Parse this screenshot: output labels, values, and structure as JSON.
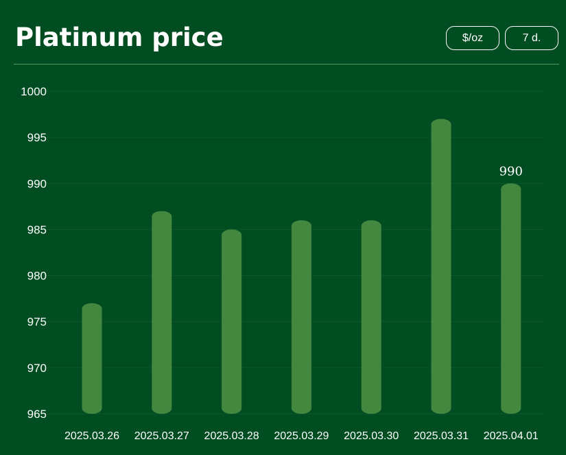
{
  "header": {
    "title": "Platinum price",
    "unit_button": "$/oz",
    "range_button": "7 d."
  },
  "colors": {
    "background": "#004d22",
    "bar": "#448840",
    "grid": "#0d5a2a",
    "text": "#ffffff"
  },
  "chart_data": {
    "type": "bar",
    "title": "Platinum price",
    "xlabel": "",
    "ylabel": "",
    "categories": [
      "2025.03.26",
      "2025.03.27",
      "2025.03.28",
      "2025.03.29",
      "2025.03.30",
      "2025.03.31",
      "2025.04.01"
    ],
    "series": [
      {
        "values": [
          977,
          987,
          985,
          986,
          986,
          997,
          990
        ]
      }
    ],
    "ylim": [
      965,
      1000
    ],
    "yticks": [
      965,
      970,
      975,
      980,
      985,
      990,
      995,
      1000
    ],
    "data_labels": [
      {
        "index": 6,
        "text": "990"
      }
    ],
    "grid": true,
    "legend": "none"
  }
}
